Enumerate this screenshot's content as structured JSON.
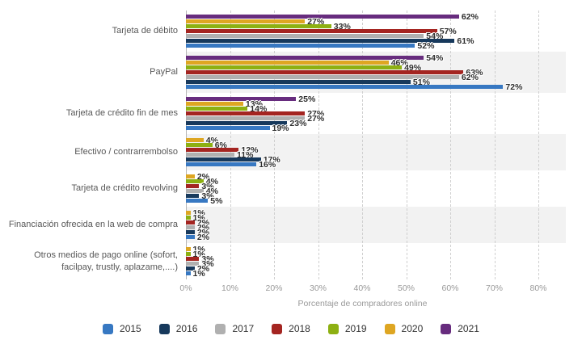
{
  "chart_data": {
    "type": "bar",
    "orientation": "horizontal",
    "title": "",
    "xlabel": "Porcentaje de compradores online",
    "ylabel": "",
    "xlim": [
      0,
      80
    ],
    "x_ticks": [
      "0%",
      "10%",
      "20%",
      "30%",
      "40%",
      "50%",
      "60%",
      "70%",
      "80%"
    ],
    "grid": "dashed-vertical",
    "legend_position": "bottom",
    "bar_order_in_group": "newest-year-on-top",
    "categories": [
      "Tarjeta de débito",
      "PayPal",
      "Tarjeta de crédito fin de mes",
      "Efectivo / contrarrembolso",
      "Tarjeta de crédito revolving",
      "Financiación ofrecida en la web de compra",
      "Otros medios de pago online (sofort, facilpay, trustly, aplazame,....)"
    ],
    "series": [
      {
        "name": "2015",
        "color": "#3778c2",
        "values": [
          52,
          72,
          19,
          16,
          5,
          2,
          1
        ]
      },
      {
        "name": "2016",
        "color": "#17395c",
        "values": [
          61,
          51,
          23,
          17,
          3,
          2,
          2
        ]
      },
      {
        "name": "2017",
        "color": "#b0b0b0",
        "values": [
          54,
          62,
          27,
          11,
          4,
          2,
          3
        ]
      },
      {
        "name": "2018",
        "color": "#a42521",
        "values": [
          57,
          63,
          27,
          12,
          3,
          2,
          3
        ]
      },
      {
        "name": "2019",
        "color": "#8db012",
        "values": [
          33,
          49,
          14,
          6,
          4,
          1,
          1
        ]
      },
      {
        "name": "2020",
        "color": "#dea622",
        "values": [
          27,
          46,
          13,
          4,
          2,
          1,
          1
        ]
      },
      {
        "name": "2021",
        "color": "#672c7e",
        "values": [
          62,
          54,
          25,
          null,
          null,
          null,
          null
        ]
      }
    ],
    "value_label_suffix": "%",
    "zebra_band_color": "#f2f2f2"
  }
}
